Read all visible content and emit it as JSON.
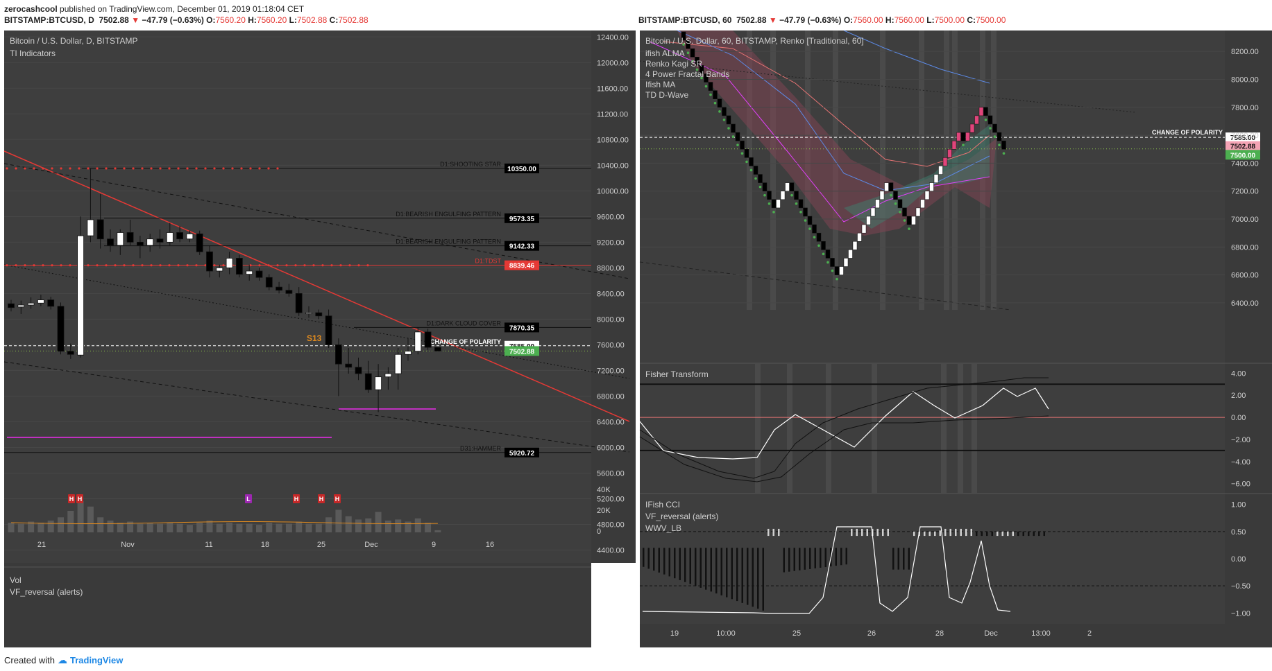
{
  "header": {
    "author": "zerocashcool",
    "published_text": "published on TradingView.com, December 01, 2019 01:18:04 CET",
    "left_symbol": "BITSTAMP:BTCUSD, D",
    "right_symbol": "BITSTAMP:BTCUSD, 60",
    "price": "7502.88",
    "change": "−47.79 (−0.63%)",
    "left_ohlc": {
      "O": "7560.20",
      "H": "7560.20",
      "L": "7502.88",
      "C": "7502.88"
    },
    "right_ohlc": {
      "O": "7560.00",
      "H": "7560.00",
      "L": "7500.00",
      "C": "7500.00"
    }
  },
  "footer": {
    "created_with": "Created with",
    "brand": "TradingView"
  },
  "colors": {
    "panel_bg": "#3e3e3e",
    "grid": "#474747",
    "up_candle": "#ffffff",
    "down_candle": "#000000",
    "resistance": "#e53935",
    "support_line": "#c030c0",
    "polarity_label": "#4caf50"
  },
  "left_chart": {
    "title": "Bitcoin / U.S. Dollar, D, BITSTAMP",
    "indicator_title": "TI Indicators",
    "volume_title": "Vol",
    "volume_indicator": "VF_reversal (alerts)",
    "y_ticks": [
      "12400.00",
      "12000.00",
      "11600.00",
      "11200.00",
      "10800.00",
      "10400.00",
      "10000.00",
      "9600.00",
      "9200.00",
      "8800.00",
      "8400.00",
      "8000.00",
      "7600.00",
      "7200.00",
      "6800.00",
      "6400.00",
      "6000.00",
      "5600.00",
      "5200.00",
      "4800.00",
      "4400.00"
    ],
    "x_ticks": [
      "21",
      "Nov",
      "11",
      "18",
      "25",
      "Dec",
      "9",
      "16"
    ],
    "volume_ticks": [
      "40K",
      "20K",
      "0"
    ],
    "levels": [
      {
        "price": "10350.00",
        "label": "D1:SHOOTING STAR"
      },
      {
        "price": "9573.35",
        "label": "D1:BEARISH ENGULFING PATTERN"
      },
      {
        "price": "9142.33",
        "label": "D1:BEARISH ENGULFING PATTERN"
      },
      {
        "price": "8839.46",
        "label": "D1:TDST"
      },
      {
        "price": "7870.35",
        "label": "D1:DARK CLOUD COVER"
      },
      {
        "price": "7585.00",
        "label": "CHANGE OF POLARITY"
      },
      {
        "price": "7502.88",
        "label": ""
      },
      {
        "price": "5920.72",
        "label": "D31:HAMMER"
      }
    ],
    "annotation": "S13",
    "volume_markers": [
      "H",
      "H",
      "L",
      "H",
      "H",
      "H"
    ]
  },
  "right_chart": {
    "title": "Bitcoin / U.S. Dollar, 60, BITSTAMP, Renko [Traditional, 60]",
    "indicators": [
      "ifish ALMA",
      "Renko Kagi SR",
      "4 Power Fractal Bands",
      "Ifish MA",
      "TD D-Wave"
    ],
    "y_ticks": [
      "8200.00",
      "8000.00",
      "7800.00",
      "7600.00",
      "7400.00",
      "7200.00",
      "7000.00",
      "6800.00",
      "6600.00",
      "6400.00"
    ],
    "levels": [
      {
        "price": "7585.00",
        "label": "CHANGE OF POLARITY"
      },
      {
        "price": "7502.88",
        "label": ""
      },
      {
        "price": "7500.00",
        "label": ""
      }
    ],
    "fisher": {
      "title": "Fisher Transform",
      "ticks": [
        "4.00",
        "2.00",
        "0.00",
        "−2.00",
        "−4.00",
        "−6.00"
      ]
    },
    "cci": {
      "title": "IFish CCI",
      "indicators": [
        "VF_reversal (alerts)",
        "WWV_LB"
      ],
      "ticks": [
        "1.00",
        "0.50",
        "0.00",
        "−0.50",
        "−1.00"
      ]
    },
    "x_ticks": [
      "19",
      "10:00",
      "25",
      "26",
      "28",
      "Dec",
      "13:00",
      "2"
    ]
  },
  "chart_data": [
    {
      "type": "candlestick",
      "title": "Bitcoin / U.S. Dollar, D, BITSTAMP",
      "ylim": [
        4200,
        12500
      ],
      "candles": [
        {
          "o": 8240,
          "h": 8300,
          "l": 8120,
          "c": 8180
        },
        {
          "o": 8190,
          "h": 8290,
          "l": 8080,
          "c": 8220
        },
        {
          "o": 8220,
          "h": 8340,
          "l": 8160,
          "c": 8250
        },
        {
          "o": 8250,
          "h": 8380,
          "l": 8200,
          "c": 8300
        },
        {
          "o": 8300,
          "h": 8350,
          "l": 8150,
          "c": 8200
        },
        {
          "o": 8200,
          "h": 8260,
          "l": 7450,
          "c": 7500
        },
        {
          "o": 7500,
          "h": 7620,
          "l": 7380,
          "c": 7450
        },
        {
          "o": 7440,
          "h": 9600,
          "l": 7400,
          "c": 9300
        },
        {
          "o": 9300,
          "h": 10350,
          "l": 9200,
          "c": 9550
        },
        {
          "o": 9550,
          "h": 9950,
          "l": 9100,
          "c": 9250
        },
        {
          "o": 9250,
          "h": 9400,
          "l": 9050,
          "c": 9150
        },
        {
          "o": 9150,
          "h": 9400,
          "l": 9000,
          "c": 9350
        },
        {
          "o": 9350,
          "h": 9550,
          "l": 9150,
          "c": 9200
        },
        {
          "o": 9200,
          "h": 9300,
          "l": 8950,
          "c": 9150
        },
        {
          "o": 9150,
          "h": 9330,
          "l": 9050,
          "c": 9250
        },
        {
          "o": 9250,
          "h": 9400,
          "l": 9100,
          "c": 9200
        },
        {
          "o": 9200,
          "h": 9500,
          "l": 9150,
          "c": 9350
        },
        {
          "o": 9350,
          "h": 9450,
          "l": 9200,
          "c": 9250
        },
        {
          "o": 9250,
          "h": 9380,
          "l": 9200,
          "c": 9330
        },
        {
          "o": 9330,
          "h": 9380,
          "l": 9000,
          "c": 9050
        },
        {
          "o": 9050,
          "h": 9150,
          "l": 8650,
          "c": 8750
        },
        {
          "o": 8750,
          "h": 8850,
          "l": 8650,
          "c": 8800
        },
        {
          "o": 8800,
          "h": 9050,
          "l": 8700,
          "c": 8950
        },
        {
          "o": 8950,
          "h": 9000,
          "l": 8650,
          "c": 8700
        },
        {
          "o": 8700,
          "h": 8850,
          "l": 8600,
          "c": 8750
        },
        {
          "o": 8750,
          "h": 8800,
          "l": 8600,
          "c": 8650
        },
        {
          "o": 8650,
          "h": 8700,
          "l": 8450,
          "c": 8500
        },
        {
          "o": 8500,
          "h": 8580,
          "l": 8400,
          "c": 8450
        },
        {
          "o": 8450,
          "h": 8550,
          "l": 8350,
          "c": 8400
        },
        {
          "o": 8400,
          "h": 8500,
          "l": 8050,
          "c": 8100
        },
        {
          "o": 8100,
          "h": 8200,
          "l": 8020,
          "c": 8100
        },
        {
          "o": 8100,
          "h": 8150,
          "l": 8000,
          "c": 8050
        },
        {
          "o": 8050,
          "h": 8150,
          "l": 7550,
          "c": 7600
        },
        {
          "o": 7600,
          "h": 7700,
          "l": 6800,
          "c": 7300
        },
        {
          "o": 7300,
          "h": 7550,
          "l": 7150,
          "c": 7250
        },
        {
          "o": 7250,
          "h": 7400,
          "l": 7050,
          "c": 7150
        },
        {
          "o": 7150,
          "h": 7350,
          "l": 6850,
          "c": 6900
        },
        {
          "o": 6900,
          "h": 7300,
          "l": 6550,
          "c": 7100
        },
        {
          "o": 7100,
          "h": 7250,
          "l": 6900,
          "c": 7150
        },
        {
          "o": 7150,
          "h": 7550,
          "l": 6900,
          "c": 7450
        },
        {
          "o": 7450,
          "h": 7700,
          "l": 7350,
          "c": 7500
        },
        {
          "o": 7500,
          "h": 7870,
          "l": 7450,
          "c": 7800
        },
        {
          "o": 7800,
          "h": 7850,
          "l": 7520,
          "c": 7560
        },
        {
          "o": 7560,
          "h": 7560,
          "l": 7500,
          "c": 7503
        }
      ],
      "volume": [
        9,
        8,
        10,
        9,
        11,
        14,
        20,
        29,
        24,
        14,
        11,
        9,
        10,
        8,
        9,
        8,
        9,
        8,
        7,
        9,
        11,
        8,
        9,
        8,
        8,
        7,
        9,
        8,
        8,
        10,
        8,
        8,
        14,
        21,
        15,
        12,
        13,
        19,
        11,
        12,
        10,
        13,
        9,
        2
      ],
      "volume_ylim": [
        0,
        40000
      ]
    },
    {
      "type": "renko",
      "title": "Bitcoin / U.S. Dollar, 60, BITSTAMP, Renko [Traditional, 60]",
      "brick_size": 60,
      "ylim": [
        6350,
        8350
      ],
      "bricks": [
        8280,
        8220,
        8160,
        8100,
        8040,
        7980,
        7920,
        7860,
        7800,
        7740,
        7680,
        7620,
        7560,
        7500,
        7440,
        7380,
        7320,
        7260,
        7200,
        7140,
        7080,
        7140,
        7200,
        7260,
        7200,
        7140,
        7080,
        7020,
        6960,
        6900,
        6840,
        6780,
        6720,
        6660,
        6600,
        6660,
        6720,
        6780,
        6840,
        6900,
        6960,
        7020,
        7080,
        7140,
        7200,
        7260,
        7200,
        7140,
        7080,
        7020,
        6960,
        7020,
        7080,
        7140,
        7200,
        7260,
        7320,
        7380,
        7440,
        7500,
        7560,
        7620,
        7560,
        7620,
        7680,
        7740,
        7800,
        7740,
        7680,
        7620,
        7560,
        7500
      ]
    }
  ]
}
